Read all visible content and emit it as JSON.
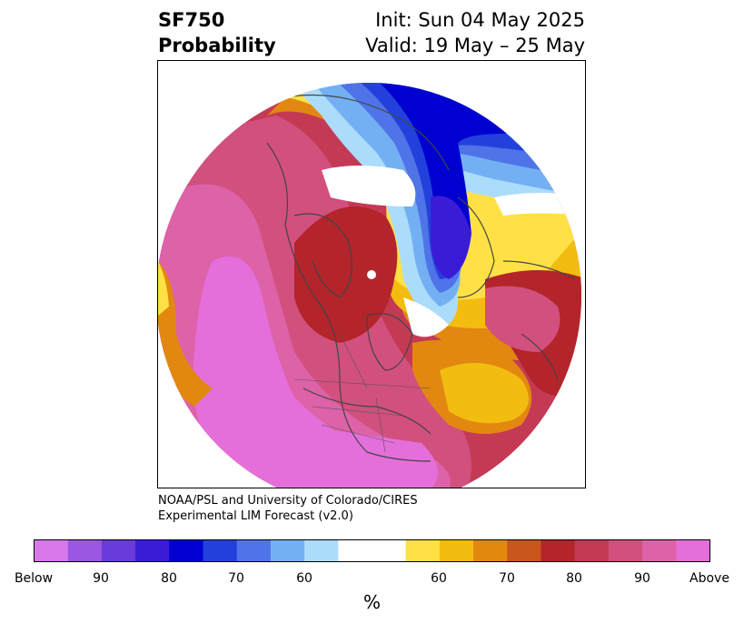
{
  "header": {
    "variable": "SF750",
    "subtitle": "Probability",
    "init": "Init: Sun 04 May 2025",
    "valid": "Valid: 19 May – 25 May"
  },
  "credit": {
    "line1": "NOAA/PSL and University of Colorado/CIRES",
    "line2": "Experimental LIM Forecast (v2.0)"
  },
  "colorbar": {
    "unit": "%",
    "colors": [
      "#d978ea",
      "#9b57e1",
      "#6a3bdb",
      "#3b1cd6",
      "#0000d0",
      "#2241dc",
      "#4f74e8",
      "#73b0f3",
      "#acdcfc",
      "#ffffff",
      "#ffffff",
      "#ffe146",
      "#f3bc10",
      "#e28811",
      "#c9561d",
      "#b3242b",
      "#c43a55",
      "#d2507e",
      "#dd62a8",
      "#e46fdb"
    ],
    "ticks": [
      "Below",
      "90",
      "80",
      "70",
      "60",
      "60",
      "70",
      "80",
      "90",
      "Above"
    ]
  },
  "map": {
    "projection": "north-polar-stereographic",
    "icons": [
      "coastline-lines",
      "country-border-lines",
      "state-border-lines"
    ]
  }
}
